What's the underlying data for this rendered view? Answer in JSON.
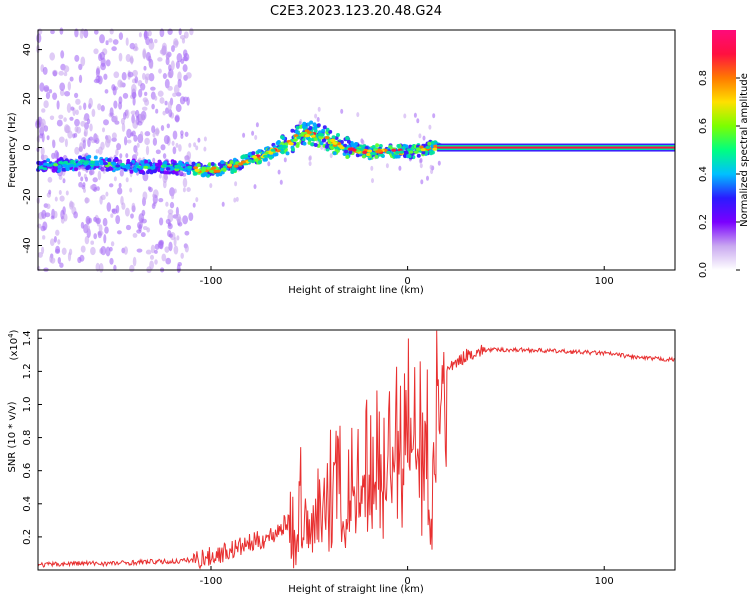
{
  "title": "C2E3.2023.123.20.48.G24",
  "chart_data": [
    {
      "type": "heatmap",
      "xlabel": "Height of straight line (km)",
      "ylabel": "Frequency (Hz)",
      "xlim": [
        -188,
        136
      ],
      "ylim": [
        -50,
        48
      ],
      "x_ticks": [
        -100,
        0,
        100
      ],
      "y_ticks": [
        -40,
        -20,
        0,
        20,
        40
      ],
      "colorbar": {
        "label": "Normalized spectral amplitude",
        "range": [
          0,
          1
        ],
        "ticks": [
          0.0,
          0.2,
          0.4,
          0.6,
          0.8
        ],
        "colors": [
          "#ffffff",
          "#c9a8f0",
          "#7a00ff",
          "#2a1bff",
          "#00c0ff",
          "#00ff80",
          "#7cff00",
          "#ffe000",
          "#ff7a00",
          "#ff1040",
          "#ff0a7a"
        ]
      },
      "ridge": {
        "x": [
          -188,
          -175,
          -165,
          -150,
          -135,
          -120,
          -110,
          -100,
          -90,
          -80,
          -70,
          -60,
          -55,
          -50,
          -45,
          -40,
          -35,
          -30,
          -25,
          -20,
          -10,
          0,
          10,
          20,
          136
        ],
        "y": [
          -8,
          -7,
          -6,
          -7,
          -8,
          -8,
          -9,
          -9,
          -8,
          -5,
          -2,
          2,
          5,
          6,
          5,
          3,
          1,
          0,
          -1,
          -2,
          -1,
          -2,
          0,
          0,
          0
        ]
      }
    },
    {
      "type": "line",
      "xlabel": "Height of straight line (km)",
      "ylabel": "SNR (10 * v/v)",
      "scale_label": "(x10",
      "scale_exp": "4",
      "xlim": [
        -188,
        136
      ],
      "ylim": [
        0,
        1.45
      ],
      "x_ticks": [
        -100,
        0,
        100
      ],
      "y_ticks": [
        0.2,
        0.4,
        0.6,
        0.8,
        1.0,
        1.2,
        1.4
      ],
      "series": [
        {
          "color": "#e83030",
          "x": [
            -188,
            -170,
            -150,
            -130,
            -120,
            -110,
            -100,
            -90,
            -80,
            -70,
            -60,
            -50,
            -40,
            -30,
            -20,
            -15,
            -10,
            -5,
            0,
            5,
            10,
            12,
            15,
            20,
            30,
            40,
            60,
            80,
            100,
            120,
            136
          ],
          "y": [
            0.03,
            0.04,
            0.04,
            0.05,
            0.05,
            0.06,
            0.08,
            0.12,
            0.16,
            0.2,
            0.3,
            0.45,
            0.55,
            0.6,
            0.7,
            0.8,
            0.85,
            1.0,
            1.05,
            1.0,
            0.9,
            0.45,
            1.15,
            1.2,
            1.3,
            1.33,
            1.33,
            1.32,
            1.31,
            1.28,
            1.27
          ]
        }
      ]
    }
  ]
}
